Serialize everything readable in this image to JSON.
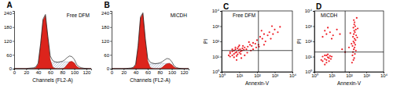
{
  "chart_data": [
    {
      "type": "line",
      "title": "A",
      "annotation": "Free DFM",
      "xlabel": "Channels (FL2-A)",
      "xlim": [
        0,
        128
      ],
      "xticks": [
        0,
        20,
        40,
        60,
        80,
        100,
        120
      ],
      "ylim": [
        0,
        250
      ],
      "yticks": [
        0,
        60,
        120,
        180,
        240
      ],
      "x": [
        0,
        4,
        8,
        12,
        16,
        20,
        24,
        28,
        32,
        36,
        40,
        44,
        48,
        52,
        56,
        60,
        64,
        68,
        72,
        76,
        80,
        84,
        88,
        92,
        96,
        100,
        104,
        108,
        112,
        116,
        120,
        124,
        128
      ],
      "series": [
        {
          "type": "area",
          "color": "#7f8fb0",
          "line_style": "hatched",
          "values": [
            0,
            0,
            0,
            0,
            0,
            0,
            0,
            0,
            0,
            0,
            0,
            0,
            0,
            5,
            15,
            22,
            26,
            28,
            27,
            28,
            29,
            30,
            30,
            28,
            22,
            14,
            6,
            1,
            0,
            0,
            0,
            0,
            0
          ]
        },
        {
          "type": "area",
          "color": "#dc241c",
          "values": [
            0,
            0,
            0,
            0,
            0,
            0,
            0,
            0,
            1,
            5,
            20,
            105,
            210,
            230,
            135,
            40,
            8,
            1,
            0,
            0,
            0,
            0,
            0,
            0,
            0,
            0,
            0,
            0,
            0,
            0,
            0,
            0,
            0
          ]
        },
        {
          "type": "area",
          "color": "#dc241c",
          "values": [
            0,
            0,
            0,
            0,
            0,
            0,
            0,
            0,
            0,
            0,
            0,
            0,
            0,
            0,
            0,
            0,
            0,
            0,
            0,
            0,
            0,
            5,
            18,
            30,
            32,
            25,
            10,
            3,
            1,
            0,
            0,
            0,
            0
          ]
        },
        {
          "type": "line",
          "color": "#000000",
          "values": [
            0,
            0,
            0,
            0,
            0,
            0,
            2,
            3,
            4,
            8,
            25,
            110,
            215,
            235,
            140,
            55,
            35,
            30,
            28,
            30,
            32,
            38,
            48,
            55,
            52,
            40,
            18,
            8,
            4,
            2,
            1,
            0,
            0
          ]
        }
      ]
    },
    {
      "type": "line",
      "title": "B",
      "annotation": "MICDH",
      "xlabel": "Channels (FL2-A)",
      "xlim": [
        0,
        128
      ],
      "xticks": [
        0,
        20,
        40,
        60,
        80,
        100,
        120
      ],
      "ylim": [
        0,
        250
      ],
      "yticks": [
        0,
        60,
        120,
        180,
        240
      ],
      "x": [
        0,
        4,
        8,
        12,
        16,
        20,
        24,
        28,
        32,
        36,
        40,
        44,
        48,
        52,
        56,
        60,
        64,
        68,
        72,
        76,
        80,
        84,
        88,
        92,
        96,
        100,
        104,
        108,
        112,
        116,
        120,
        124,
        128
      ],
      "series": [
        {
          "type": "area",
          "color": "#7f8fb0",
          "line_style": "hatched",
          "values": [
            0,
            0,
            0,
            0,
            0,
            0,
            0,
            0,
            0,
            0,
            0,
            0,
            0,
            4,
            12,
            17,
            20,
            21,
            21,
            22,
            22,
            23,
            23,
            22,
            18,
            11,
            5,
            1,
            0,
            0,
            0,
            0,
            0
          ]
        },
        {
          "type": "area",
          "color": "#dc241c",
          "values": [
            0,
            0,
            0,
            0,
            0,
            0,
            0,
            0,
            1,
            4,
            16,
            95,
            220,
            238,
            125,
            35,
            6,
            1,
            0,
            0,
            0,
            0,
            0,
            0,
            0,
            0,
            0,
            0,
            0,
            0,
            0,
            0,
            0
          ]
        },
        {
          "type": "area",
          "color": "#dc241c",
          "values": [
            0,
            0,
            0,
            0,
            0,
            0,
            0,
            0,
            0,
            0,
            0,
            0,
            0,
            0,
            0,
            0,
            0,
            0,
            0,
            0,
            0,
            6,
            15,
            22,
            24,
            18,
            7,
            2,
            1,
            0,
            0,
            0,
            0
          ]
        },
        {
          "type": "line",
          "color": "#000000",
          "values": [
            0,
            0,
            0,
            0,
            0,
            0,
            1,
            2,
            3,
            6,
            20,
            100,
            225,
            242,
            130,
            45,
            28,
            24,
            22,
            23,
            25,
            30,
            38,
            44,
            42,
            30,
            12,
            5,
            2,
            1,
            0,
            0,
            0
          ]
        }
      ]
    },
    {
      "type": "scatter",
      "title": "C",
      "annotation": "Free DFM",
      "xlabel": "Annexin-V",
      "ylabel": "PI",
      "log": true,
      "color": "#ee1c24",
      "marker": "dot",
      "xlim": [
        1,
        10000
      ],
      "ylim": [
        1,
        10000
      ],
      "xticks": [
        {
          "value": 1,
          "label": "10⁰"
        },
        {
          "value": 10,
          "label": "10¹"
        },
        {
          "value": 100,
          "label": "10²"
        },
        {
          "value": 1000,
          "label": "10³"
        },
        {
          "value": 10000,
          "label": "10⁴"
        }
      ],
      "yticks": [
        {
          "value": 1,
          "label": "10⁰"
        },
        {
          "value": 10,
          "label": "10¹"
        },
        {
          "value": 100,
          "label": "10²"
        },
        {
          "value": 1000,
          "label": "10³"
        },
        {
          "value": 10000,
          "label": "10⁴"
        }
      ],
      "quadrant_x": 120,
      "quadrant_y": 25,
      "x": [
        4,
        5,
        6,
        3,
        7,
        8,
        5,
        6,
        4,
        9,
        10,
        12,
        3,
        2.5,
        5,
        7,
        8,
        11,
        14,
        6,
        9,
        15,
        4,
        3,
        12,
        18,
        20,
        25,
        16,
        10,
        30,
        40,
        50,
        60,
        35,
        80,
        100,
        120,
        150,
        200,
        250,
        300,
        400,
        500,
        180,
        600,
        800,
        1000,
        1500,
        2000,
        700,
        90,
        60,
        45,
        130,
        250,
        20,
        28,
        7,
        13
      ],
      "values": [
        12,
        15,
        18,
        10,
        20,
        14,
        25,
        30,
        22,
        26,
        18,
        22,
        16,
        12,
        9,
        11,
        35,
        30,
        25,
        40,
        45,
        35,
        30,
        20,
        15,
        28,
        40,
        30,
        50,
        55,
        45,
        60,
        50,
        80,
        90,
        70,
        120,
        60,
        200,
        150,
        300,
        100,
        250,
        400,
        500,
        150,
        300,
        600,
        400,
        900,
        1000,
        40,
        30,
        25,
        45,
        60,
        12,
        18,
        6,
        8
      ]
    },
    {
      "type": "scatter",
      "title": "D",
      "annotation": "MICDH",
      "xlabel": "Annexin-V",
      "ylabel": "PI",
      "log": true,
      "color": "#ee1c24",
      "marker": "dot",
      "xlim": [
        1,
        10000
      ],
      "ylim": [
        1,
        10000
      ],
      "xticks": [
        {
          "value": 1,
          "label": "10⁰"
        },
        {
          "value": 10,
          "label": "10¹"
        },
        {
          "value": 100,
          "label": "10²"
        },
        {
          "value": 1000,
          "label": "10³"
        },
        {
          "value": 10000,
          "label": "10⁴"
        }
      ],
      "yticks": [
        {
          "value": 1,
          "label": "10⁰"
        },
        {
          "value": 10,
          "label": "10¹"
        },
        {
          "value": 100,
          "label": "10²"
        },
        {
          "value": 1000,
          "label": "10³"
        },
        {
          "value": 10000,
          "label": "10⁴"
        }
      ],
      "quadrant_x": 60,
      "quadrant_y": 20,
      "x": [
        3,
        4,
        5,
        6,
        3,
        4,
        7,
        5,
        8,
        2.5,
        6,
        9,
        4,
        10,
        5,
        7,
        150,
        180,
        200,
        160,
        220,
        170,
        250,
        190,
        210,
        160,
        230,
        200,
        180,
        240,
        210,
        170,
        260,
        190,
        220,
        200,
        250,
        180,
        230,
        200,
        210,
        190,
        280,
        140,
        300,
        120,
        320,
        100,
        3,
        5,
        4,
        8,
        12,
        6,
        20,
        10,
        40,
        60,
        30
      ],
      "values": [
        5,
        7,
        6,
        9,
        10,
        12,
        8,
        4,
        11,
        6,
        14,
        7,
        3,
        10,
        12,
        5,
        4,
        6,
        8,
        12,
        15,
        20,
        25,
        30,
        40,
        50,
        60,
        80,
        100,
        120,
        150,
        200,
        250,
        300,
        400,
        500,
        600,
        800,
        1000,
        1300,
        1800,
        2500,
        3500,
        70,
        180,
        350,
        700,
        40,
        200,
        300,
        500,
        400,
        250,
        800,
        600,
        150,
        30,
        20,
        300
      ]
    }
  ]
}
